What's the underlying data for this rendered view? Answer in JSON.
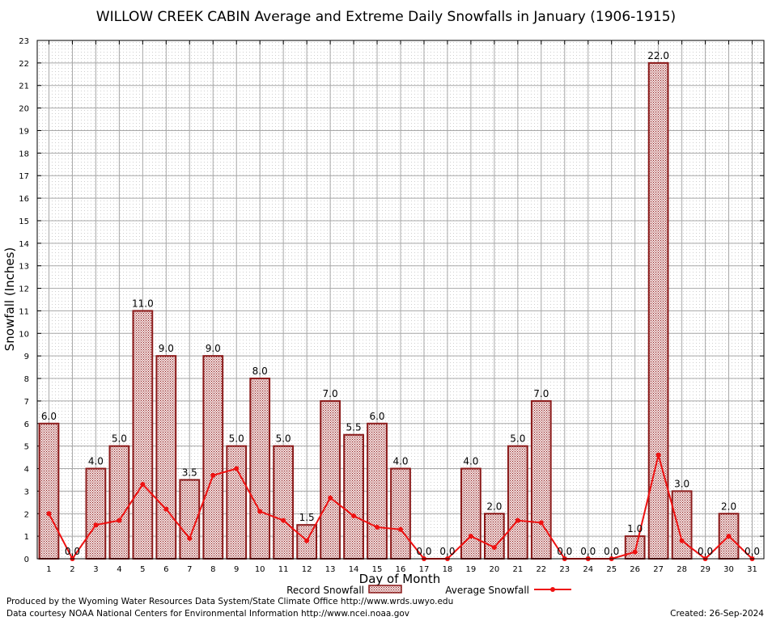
{
  "chart_data": {
    "type": "bar",
    "title": "WILLOW CREEK CABIN Average and Extreme Daily Snowfalls in January (1906-1915)",
    "xlabel": "Day of Month",
    "ylabel": "Snowfall (Inches)",
    "ylim": [
      0,
      23
    ],
    "yticks": [
      "0",
      "1",
      "2",
      "3",
      "4",
      "5",
      "6",
      "7",
      "8",
      "9",
      "10",
      "11",
      "12",
      "13",
      "14",
      "15",
      "16",
      "17",
      "18",
      "19",
      "20",
      "21",
      "22",
      "23"
    ],
    "categories": [
      "1",
      "2",
      "3",
      "4",
      "5",
      "6",
      "7",
      "8",
      "9",
      "10",
      "11",
      "12",
      "13",
      "14",
      "15",
      "16",
      "17",
      "18",
      "19",
      "20",
      "21",
      "22",
      "23",
      "24",
      "25",
      "26",
      "27",
      "28",
      "29",
      "30",
      "31"
    ],
    "series": [
      {
        "name": "Record Snowfall",
        "type": "bar",
        "color": "#8b1a1a",
        "values": [
          6.0,
          0.0,
          4.0,
          5.0,
          11.0,
          9.0,
          3.5,
          9.0,
          5.0,
          8.0,
          5.0,
          1.5,
          7.0,
          5.5,
          6.0,
          4.0,
          0.0,
          0.0,
          4.0,
          2.0,
          5.0,
          7.0,
          0.0,
          0.0,
          0.0,
          1.0,
          22.0,
          3.0,
          0.0,
          2.0,
          0.0
        ],
        "labels": [
          "6.0",
          "0.0",
          "4.0",
          "5.0",
          "11.0",
          "9.0",
          "3.5",
          "9.0",
          "5.0",
          "8.0",
          "5.0",
          "1.5",
          "7.0",
          "5.5",
          "6.0",
          "4.0",
          "0.0",
          "0.0",
          "4.0",
          "2.0",
          "5.0",
          "7.0",
          "0.0",
          "0.0",
          "0.0",
          "1.0",
          "22.0",
          "3.0",
          "0.0",
          "2.0",
          "0.0"
        ]
      },
      {
        "name": "Average Snowfall",
        "type": "line",
        "color": "#ee1111",
        "values": [
          2.0,
          0.0,
          1.5,
          1.7,
          3.3,
          2.2,
          0.9,
          3.7,
          4.0,
          2.1,
          1.7,
          0.8,
          2.7,
          1.9,
          1.4,
          1.3,
          0.0,
          0.0,
          1.0,
          0.5,
          1.7,
          1.6,
          0.0,
          0.0,
          0.0,
          0.3,
          4.6,
          0.8,
          0.0,
          1.0,
          0.0
        ]
      }
    ],
    "grid": true,
    "legend": "bottom-center"
  },
  "footer": {
    "produced_by": "Produced by the Wyoming Water Resources Data System/State Climate Office http://www.wrds.uwyo.edu",
    "courtesy": "Data courtesy NOAA National Centers for Environmental Information http://www.ncei.noaa.gov",
    "created": "Created: 26-Sep-2024"
  }
}
